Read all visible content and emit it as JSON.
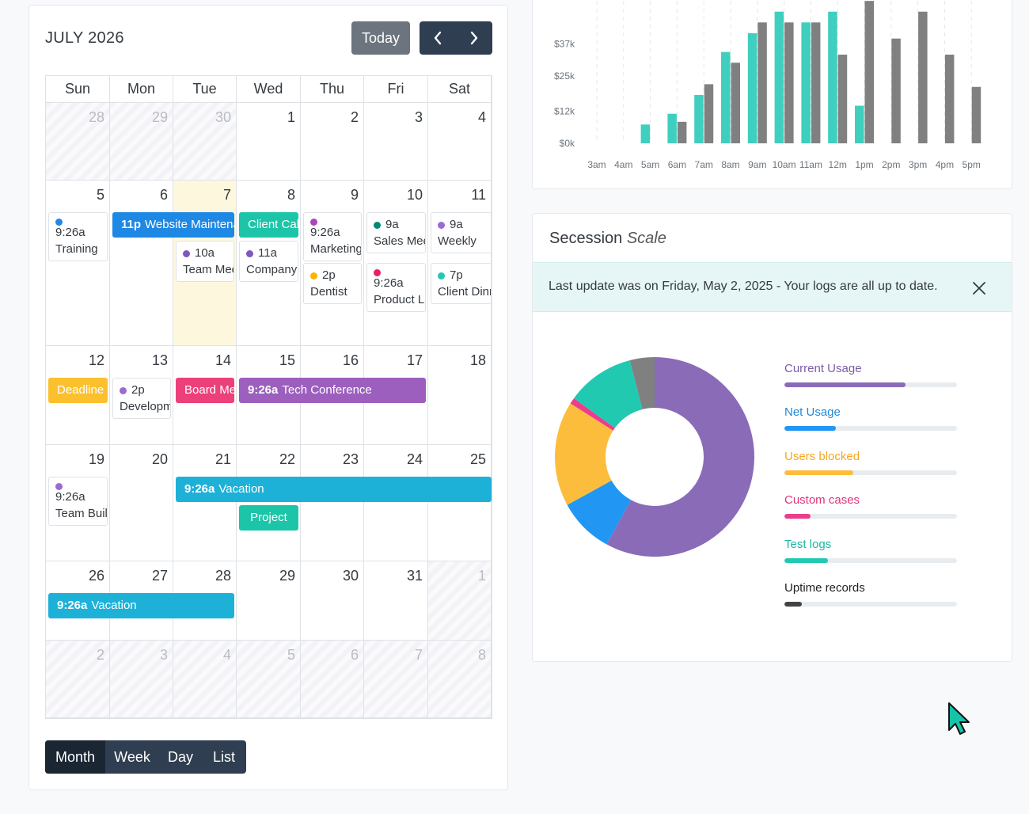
{
  "calendar": {
    "title": "JULY 2026",
    "today_label": "Today",
    "weekdays": [
      "Sun",
      "Mon",
      "Tue",
      "Wed",
      "Thu",
      "Fri",
      "Sat"
    ],
    "weeks": [
      [
        {
          "n": "28",
          "other": true
        },
        {
          "n": "29",
          "other": true
        },
        {
          "n": "30",
          "other": true
        },
        {
          "n": "1"
        },
        {
          "n": "2"
        },
        {
          "n": "3"
        },
        {
          "n": "4"
        }
      ],
      [
        {
          "n": "5"
        },
        {
          "n": "6"
        },
        {
          "n": "7",
          "today": true
        },
        {
          "n": "8"
        },
        {
          "n": "9"
        },
        {
          "n": "10"
        },
        {
          "n": "11"
        }
      ],
      [
        {
          "n": "12"
        },
        {
          "n": "13"
        },
        {
          "n": "14"
        },
        {
          "n": "15"
        },
        {
          "n": "16"
        },
        {
          "n": "17"
        },
        {
          "n": "18"
        }
      ],
      [
        {
          "n": "19"
        },
        {
          "n": "20"
        },
        {
          "n": "21"
        },
        {
          "n": "22"
        },
        {
          "n": "23"
        },
        {
          "n": "24"
        },
        {
          "n": "25"
        }
      ],
      [
        {
          "n": "26"
        },
        {
          "n": "27"
        },
        {
          "n": "28"
        },
        {
          "n": "29"
        },
        {
          "n": "30"
        },
        {
          "n": "31"
        },
        {
          "n": "1",
          "other": true
        }
      ],
      [
        {
          "n": "2",
          "other": true
        },
        {
          "n": "3",
          "other": true
        },
        {
          "n": "4",
          "other": true
        },
        {
          "n": "5",
          "other": true
        },
        {
          "n": "6",
          "other": true
        },
        {
          "n": "7",
          "other": true
        },
        {
          "n": "8",
          "other": true
        }
      ]
    ],
    "events": [
      {
        "kind": "dot",
        "week": 1,
        "day": 0,
        "span": 1,
        "slot": 0,
        "time": "9:26a",
        "title": "Training",
        "color": "#1e88e5"
      },
      {
        "kind": "block",
        "week": 1,
        "day": 1,
        "span": 2,
        "slot": 0,
        "time": "11p",
        "title": "Website Maintenance",
        "color": "#1e88e5"
      },
      {
        "kind": "block",
        "week": 1,
        "day": 3,
        "span": 1,
        "slot": 0,
        "time": "",
        "title": "Client Call",
        "color": "#1cc5a8"
      },
      {
        "kind": "dot",
        "week": 1,
        "day": 2,
        "span": 1,
        "slot": 1,
        "time": "10a",
        "title": "Team Meeting",
        "color": "#7e57c2"
      },
      {
        "kind": "dot",
        "week": 1,
        "day": 3,
        "span": 1,
        "slot": 1,
        "time": "11a",
        "title": "Company Event",
        "color": "#7e57c2"
      },
      {
        "kind": "dot",
        "week": 1,
        "day": 4,
        "span": 1,
        "slot": 0,
        "time": "9:26a",
        "title": "Marketing",
        "color": "#ab47bc"
      },
      {
        "kind": "dot",
        "week": 1,
        "day": 4,
        "span": 1,
        "slot": 2,
        "time": "2p",
        "title": "Dentist",
        "color": "#ffb300"
      },
      {
        "kind": "dot",
        "week": 1,
        "day": 5,
        "span": 1,
        "slot": 0,
        "time": "9a",
        "title": "Sales Meeting",
        "color": "#00897b"
      },
      {
        "kind": "dot",
        "week": 1,
        "day": 5,
        "span": 1,
        "slot": 2,
        "time": "9:26a",
        "title": "Product Launch",
        "color": "#e91e63"
      },
      {
        "kind": "dot",
        "week": 1,
        "day": 6,
        "span": 1,
        "slot": 0,
        "time": "9a",
        "title": "Weekly",
        "color": "#9c6ad1"
      },
      {
        "kind": "dot",
        "week": 1,
        "day": 6,
        "span": 1,
        "slot": 2,
        "time": "7p",
        "title": "Client Dinner",
        "color": "#26c6b0"
      },
      {
        "kind": "block",
        "week": 2,
        "day": 0,
        "span": 1,
        "slot": 0,
        "time": "",
        "title": "Deadline",
        "color": "#fbc02d"
      },
      {
        "kind": "dot",
        "week": 2,
        "day": 1,
        "span": 1,
        "slot": 0,
        "time": "2p",
        "title": "Development",
        "color": "#9c6ad1"
      },
      {
        "kind": "block",
        "week": 2,
        "day": 2,
        "span": 1,
        "slot": 0,
        "time": "",
        "title": "Board Meeting",
        "color": "#ec407a"
      },
      {
        "kind": "block",
        "week": 2,
        "day": 3,
        "span": 3,
        "slot": 0,
        "time": "9:26a",
        "title": "Tech Conference",
        "color": "#9c5fbd"
      },
      {
        "kind": "dot",
        "week": 3,
        "day": 0,
        "span": 1,
        "slot": 0,
        "time": "9:26a",
        "title": "Team Building",
        "color": "#9c6ad1"
      },
      {
        "kind": "block",
        "week": 3,
        "day": 2,
        "span": 5,
        "slot": 0,
        "time": "9:26a",
        "title": "Vacation",
        "color": "#1eb1d8"
      },
      {
        "kind": "block",
        "week": 3,
        "day": 3,
        "span": 1,
        "slot": 1,
        "time": "",
        "title": "Project",
        "color": "#1cc5a8",
        "center": true
      },
      {
        "kind": "block",
        "week": 4,
        "day": 0,
        "span": 3,
        "slot": 0,
        "time": "9:26a",
        "title": "Vacation",
        "color": "#1eb1d8"
      }
    ],
    "views": [
      "Month",
      "Week",
      "Day",
      "List"
    ],
    "active_view": "Month"
  },
  "chart_data": {
    "type": "bar",
    "categories": [
      "3am",
      "4am",
      "5am",
      "6am",
      "7am",
      "8am",
      "9am",
      "10am",
      "11am",
      "12m",
      "1pm",
      "2pm",
      "3pm",
      "4pm",
      "5pm"
    ],
    "series": [
      {
        "color": "#3ecfbf",
        "values": [
          null,
          null,
          7,
          11,
          18,
          34,
          41,
          49,
          45,
          49,
          14,
          null,
          null,
          null,
          null
        ]
      },
      {
        "color": "#808080",
        "values": [
          null,
          null,
          null,
          8,
          22,
          30,
          45,
          45,
          45,
          33,
          53,
          39,
          49,
          33,
          21
        ]
      }
    ],
    "y_ticks": [
      "$0k",
      "$12k",
      "$25k",
      "$37k"
    ],
    "y_tick_values": [
      0,
      12,
      25,
      37
    ],
    "ylim": [
      0,
      56
    ]
  },
  "session": {
    "title": "Secession",
    "title_sub": "Scale",
    "alert": "Last update was on Friday, May 2, 2025 - Your logs are all up to date.",
    "donut": [
      {
        "label": "Current Usage",
        "value": 58,
        "color": "#8a6bb8"
      },
      {
        "label": "Net Usage",
        "value": 9,
        "color": "#2196f3"
      },
      {
        "label": "Users blocked",
        "value": 17,
        "color": "#fdbd3c"
      },
      {
        "label": "Custom cases",
        "value": 1,
        "color": "#ec3d8c"
      },
      {
        "label": "Test logs",
        "value": 11,
        "color": "#22c9b1"
      },
      {
        "label": "Uptime records",
        "value": 4,
        "color": "#808080"
      }
    ],
    "legend": [
      {
        "label": "Current Usage",
        "value": 0.7,
        "color": "#8a6bb8",
        "text_color": "#7a5ca8"
      },
      {
        "label": "Net Usage",
        "value": 0.3,
        "color": "#2196f3",
        "text_color": "#2289d8"
      },
      {
        "label": "Users blocked",
        "value": 0.4,
        "color": "#fdbd3c",
        "text_color": "#f5a623"
      },
      {
        "label": "Custom cases",
        "value": 0.15,
        "color": "#ec3d8c",
        "text_color": "#e0337f"
      },
      {
        "label": "Test logs",
        "value": 0.25,
        "color": "#22c9b1",
        "text_color": "#1bb8a3"
      },
      {
        "label": "Uptime records",
        "value": 0.1,
        "color": "#444444",
        "text_color": "#222222"
      }
    ]
  }
}
